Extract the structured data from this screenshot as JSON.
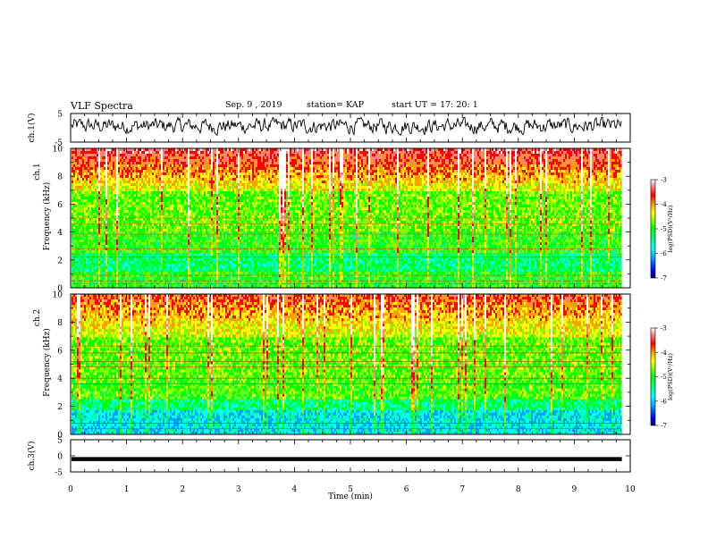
{
  "header": {
    "title": "VLF Spectra",
    "date": "Sep. 9 , 2019",
    "station": "station= KAP",
    "start": "start UT = 17: 20: 1"
  },
  "chart_data": [
    {
      "type": "line",
      "ylabel": "ch.1(V)",
      "ylim": [
        -5,
        5
      ],
      "y_ticks": [
        "5",
        "-5"
      ],
      "series": [
        {
          "values": "noisy waveform, approx. range -2.5 to 3.5 V"
        }
      ]
    },
    {
      "type": "heatmap",
      "ylabel_top": "ch.1",
      "ylabel": "Frequency (kHz)",
      "ylim": [
        0,
        10
      ],
      "y_ticks": [
        "0",
        "2",
        "4",
        "6",
        "8",
        "10"
      ],
      "colorbar": {
        "label": "log(PSD)(V²/Hz)",
        "ticks": [
          "-3",
          "-4",
          "-5",
          "-6",
          "-7"
        ],
        "range": [
          -7,
          -3
        ]
      }
    },
    {
      "type": "heatmap",
      "ylabel_top": "ch.2",
      "ylabel": "Frequency (kHz)",
      "ylim": [
        0,
        10
      ],
      "y_ticks": [
        "0",
        "2",
        "4",
        "6",
        "8",
        "10"
      ],
      "colorbar": {
        "label": "log(PSD)(V²/Hz)",
        "ticks": [
          "-3",
          "-4",
          "-5",
          "-6",
          "-7"
        ],
        "range": [
          -7,
          -3
        ]
      }
    },
    {
      "type": "line",
      "ylabel": "ch.3(V)",
      "ylim": [
        -5,
        5
      ],
      "y_ticks": [
        "5",
        "0",
        "-5"
      ],
      "series": [
        {
          "values": "constant at approx. -1 V"
        }
      ]
    }
  ],
  "xaxis": {
    "label": "Time (min)",
    "xlim": [
      0,
      10
    ],
    "ticks": [
      "0",
      "1",
      "2",
      "3",
      "4",
      "5",
      "6",
      "7",
      "8",
      "9",
      "10"
    ],
    "data_end": 9.85
  },
  "colors": {
    "colormap": [
      "#000080",
      "#0000ff",
      "#00a0ff",
      "#00ffff",
      "#00ff80",
      "#00ff00",
      "#80ff00",
      "#ffff00",
      "#ffa000",
      "#ff0000",
      "#ff8080",
      "#ffffff"
    ]
  }
}
